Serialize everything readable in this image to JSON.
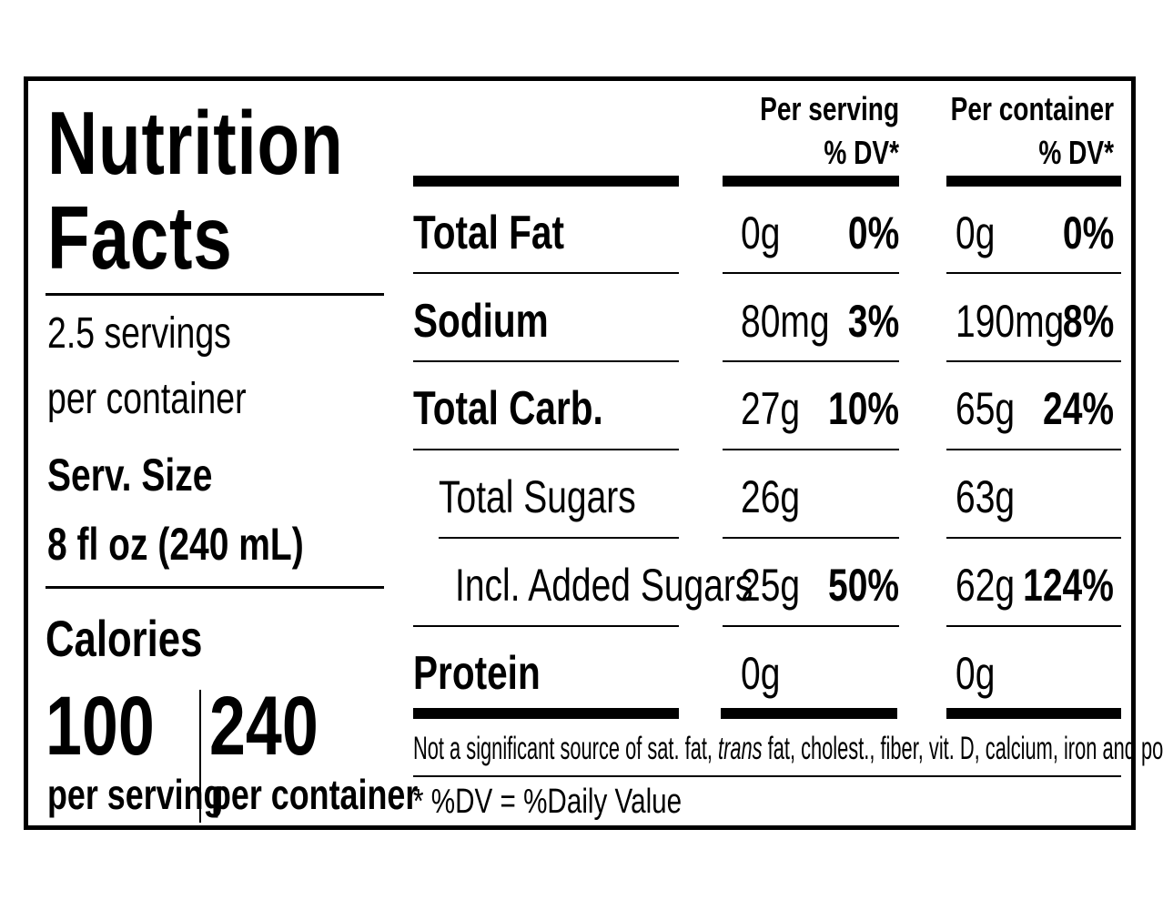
{
  "label": {
    "title_line1": "Nutrition",
    "title_line2": "Facts",
    "servings_line1": "2.5 servings",
    "servings_line2": "per container",
    "serv_size_label": "Serv. Size",
    "serv_size_value": "8 fl oz (240 mL)",
    "calories_label": "Calories",
    "calories_serving": "100",
    "calories_serving_label": "per serving",
    "calories_container": "240",
    "calories_container_label": "per container"
  },
  "headers": {
    "per_serving_line1": "Per serving",
    "per_serving_line2": "% DV*",
    "per_container_line1": "Per container",
    "per_container_line2": "% DV*"
  },
  "nutrients": [
    {
      "name": "Total Fat",
      "serving_amount": "0g",
      "serving_dv": "0%",
      "container_amount": "0g",
      "container_dv": "0%"
    },
    {
      "name": "Sodium",
      "serving_amount": "80mg",
      "serving_dv": "3%",
      "container_amount": "190mg",
      "container_dv": "8%"
    },
    {
      "name": "Total Carb.",
      "serving_amount": "27g",
      "serving_dv": "10%",
      "container_amount": "65g",
      "container_dv": "24%"
    },
    {
      "name": "Total Sugars",
      "serving_amount": "26g",
      "serving_dv": "",
      "container_amount": "63g",
      "container_dv": ""
    },
    {
      "name": "Incl. Added Sugars",
      "serving_amount": "25g",
      "serving_dv": "50%",
      "container_amount": "62g",
      "container_dv": "124%"
    },
    {
      "name": "Protein",
      "serving_amount": "0g",
      "serving_dv": "",
      "container_amount": "0g",
      "container_dv": ""
    }
  ],
  "footnote": {
    "part1": "Not a significant source of sat. fat, ",
    "part2": "trans",
    "part3": " fat, cholest., fiber, vit. D, calcium, iron and potas.",
    "dv_note": "* %DV = %Daily Value"
  }
}
